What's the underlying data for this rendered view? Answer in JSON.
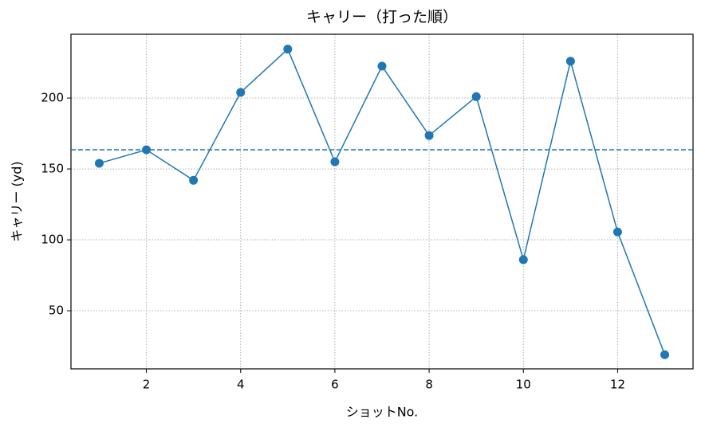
{
  "chart_data": {
    "type": "line",
    "title": "キャリー（打った順）",
    "xlabel": "ショットNo.",
    "ylabel": "キャリー (yd)",
    "x": [
      1,
      2,
      3,
      4,
      5,
      6,
      7,
      8,
      9,
      10,
      11,
      12,
      13
    ],
    "series": [
      {
        "color": "#1f77b4",
        "values": [
          154,
          163.5,
          142,
          204,
          234.5,
          155,
          222.5,
          173.6,
          201,
          86,
          226,
          105.5,
          19
        ]
      }
    ],
    "hline": 163.5,
    "xlim": [
      0.4,
      13.6
    ],
    "ylim": [
      9,
      245
    ],
    "xticks": [
      2,
      4,
      6,
      8,
      10,
      12
    ],
    "yticks": [
      50,
      100,
      150,
      200
    ],
    "grid": true
  }
}
